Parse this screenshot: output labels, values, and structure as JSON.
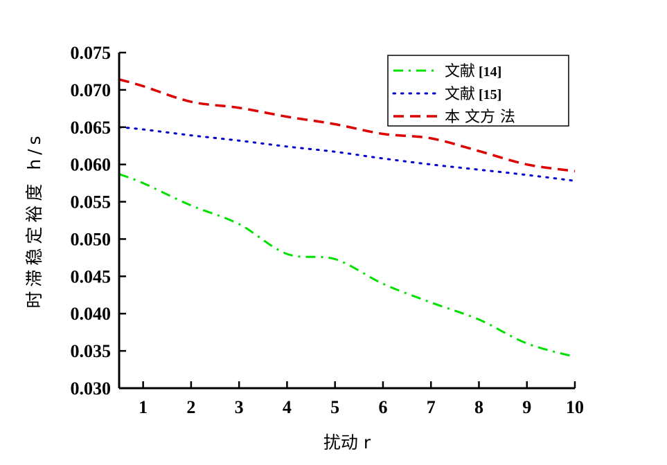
{
  "chart_data": {
    "type": "line",
    "xlabel": "扰动 r",
    "ylabel": "时滞稳定裕度 h/s",
    "xlim": [
      0.5,
      10
    ],
    "ylim": [
      0.03,
      0.075
    ],
    "x_ticks": [
      "1",
      "2",
      "3",
      "4",
      "5",
      "6",
      "7",
      "8",
      "9",
      "10"
    ],
    "y_ticks": [
      "0.030",
      "0.035",
      "0.040",
      "0.045",
      "0.050",
      "0.055",
      "0.060",
      "0.065",
      "0.070",
      "0.075"
    ],
    "grid": false,
    "legend_position": "top-right",
    "x": [
      0.5,
      1,
      2,
      3,
      4,
      5,
      6,
      7,
      8,
      9,
      10
    ],
    "series": [
      {
        "name": "文献 [14]",
        "color": "#00e000",
        "dash": "dash-dot",
        "values": [
          0.0587,
          0.0575,
          0.0545,
          0.052,
          0.048,
          0.0473,
          0.044,
          0.0415,
          0.0392,
          0.036,
          0.0342
        ]
      },
      {
        "name": "文献 [15]",
        "color": "#0000cc",
        "dash": "dotted",
        "values": [
          0.065,
          0.0647,
          0.0639,
          0.0632,
          0.0624,
          0.0617,
          0.0608,
          0.06,
          0.0593,
          0.0586,
          0.0578
        ]
      },
      {
        "name": "本 文方 法",
        "color": "#dd0000",
        "dash": "dashed",
        "values": [
          0.0714,
          0.0705,
          0.0684,
          0.0676,
          0.0664,
          0.0654,
          0.0641,
          0.0635,
          0.0618,
          0.06,
          0.0591
        ]
      }
    ]
  }
}
